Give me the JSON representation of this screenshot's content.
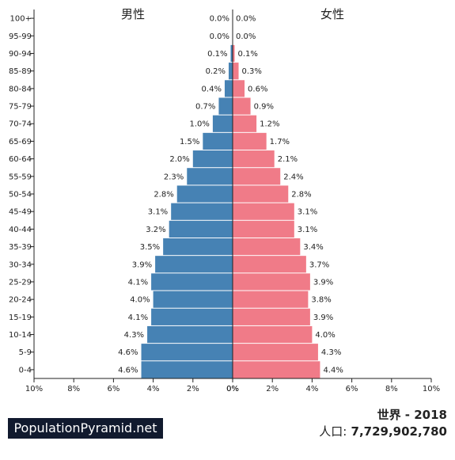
{
  "labels": {
    "male": "男性",
    "female": "女性",
    "brand": "PopulationPyramid.net",
    "region_year": "世界 - 2018",
    "population_label": "人口:",
    "population_value": "7,729,902,780"
  },
  "colors": {
    "male": "#4682b4",
    "female": "#f07b88",
    "axis": "#222222"
  },
  "chart_data": {
    "type": "bar",
    "orientation": "horizontal",
    "categories": [
      "100+",
      "95-99",
      "90-94",
      "85-89",
      "80-84",
      "75-79",
      "70-74",
      "65-69",
      "60-64",
      "55-59",
      "50-54",
      "45-49",
      "40-44",
      "35-39",
      "30-34",
      "25-29",
      "20-24",
      "15-19",
      "10-14",
      "5-9",
      "0-4"
    ],
    "series": [
      {
        "name": "男性",
        "values": [
          0.0,
          0.0,
          0.1,
          0.2,
          0.4,
          0.7,
          1.0,
          1.5,
          2.0,
          2.3,
          2.8,
          3.1,
          3.2,
          3.5,
          3.9,
          4.1,
          4.0,
          4.1,
          4.3,
          4.6,
          4.6
        ]
      },
      {
        "name": "女性",
        "values": [
          0.0,
          0.0,
          0.1,
          0.3,
          0.6,
          0.9,
          1.2,
          1.7,
          2.1,
          2.4,
          2.8,
          3.1,
          3.1,
          3.4,
          3.7,
          3.9,
          3.8,
          3.9,
          4.0,
          4.3,
          4.4
        ]
      }
    ],
    "value_labels": {
      "male": [
        "0.0%",
        "0.0%",
        "0.1%",
        "0.2%",
        "0.4%",
        "0.7%",
        "1.0%",
        "1.5%",
        "2.0%",
        "2.3%",
        "2.8%",
        "3.1%",
        "3.2%",
        "3.5%",
        "3.9%",
        "4.1%",
        "4.0%",
        "4.1%",
        "4.3%",
        "4.6%",
        "4.6%"
      ],
      "female": [
        "0.0%",
        "0.0%",
        "0.1%",
        "0.3%",
        "0.6%",
        "0.9%",
        "1.2%",
        "1.7%",
        "2.1%",
        "2.4%",
        "2.8%",
        "3.1%",
        "3.1%",
        "3.4%",
        "3.7%",
        "3.9%",
        "3.8%",
        "3.9%",
        "4.0%",
        "4.3%",
        "4.4%"
      ]
    },
    "x_ticks_left": [
      "10%",
      "8%",
      "6%",
      "4%",
      "2%",
      "0%"
    ],
    "x_ticks_right": [
      "0%",
      "2%",
      "4%",
      "6%",
      "8%",
      "10%"
    ],
    "xlim": [
      0,
      10
    ],
    "grid": false,
    "legend": "none"
  }
}
